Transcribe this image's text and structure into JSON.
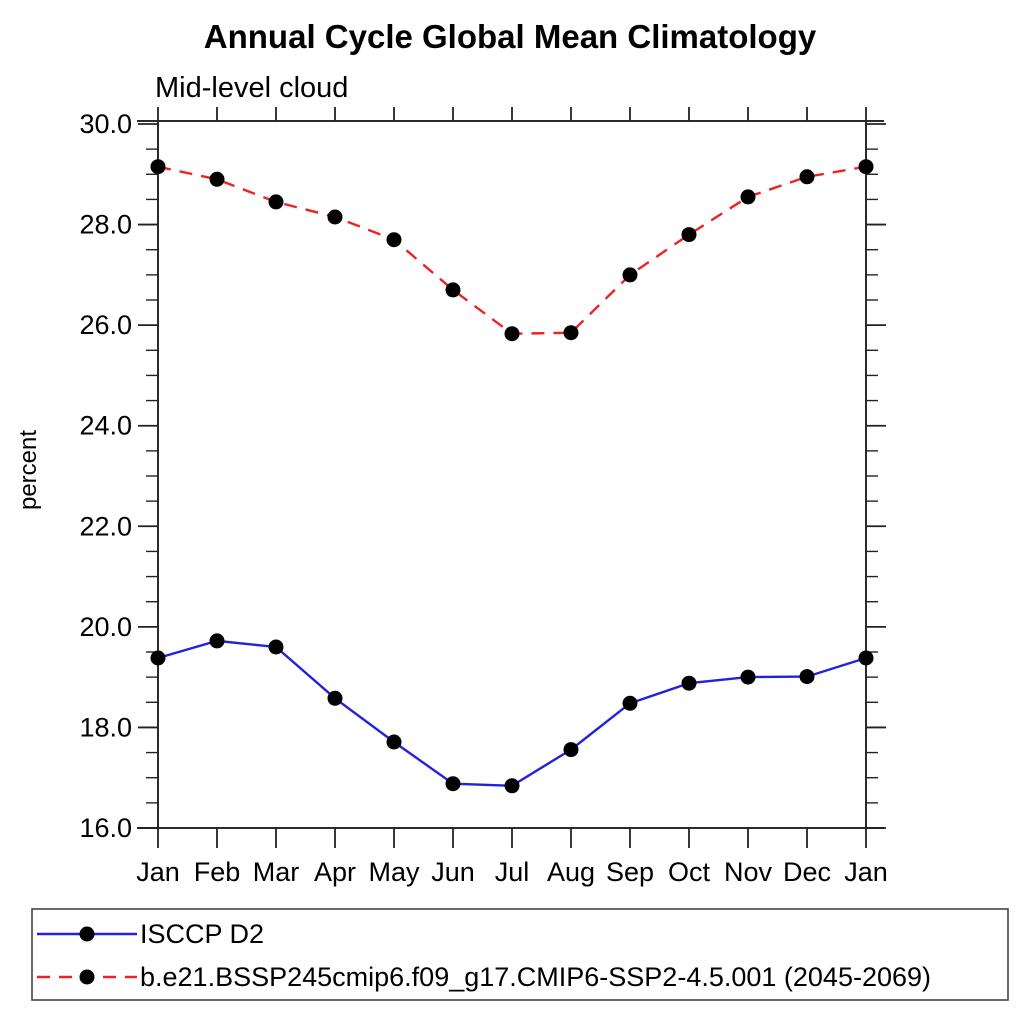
{
  "page": {
    "background": "#ffffff",
    "frame_color": "#2b2b2b",
    "tick_color": "#222222",
    "marker_color": "#000000",
    "legend_border_color": "#444444"
  },
  "chart_data": {
    "type": "line",
    "title": "Annual Cycle Global Mean Climatology",
    "subtitle": "Mid-level cloud",
    "xlabel": "",
    "ylabel": "percent",
    "x_categories": [
      "Jan",
      "Feb",
      "Mar",
      "Apr",
      "May",
      "Jun",
      "Jul",
      "Aug",
      "Sep",
      "Oct",
      "Nov",
      "Dec",
      "Jan"
    ],
    "ylim": [
      16.0,
      30.0
    ],
    "y_major_ticks": [
      16.0,
      18.0,
      20.0,
      22.0,
      24.0,
      26.0,
      28.0,
      30.0
    ],
    "y_major_tick_labels": [
      "16.0",
      "18.0",
      "20.0",
      "22.0",
      "24.0",
      "26.0",
      "28.0",
      "30.0"
    ],
    "y_minor_step": 0.5,
    "grid": false,
    "tick_style": "outward-all-sides",
    "legend_position": "bottom-left-box",
    "series": [
      {
        "name": "ISCCP D2",
        "color": "#2222dd",
        "line_style": "solid",
        "marker": "filled-circle",
        "marker_color": "#000000",
        "values": [
          19.38,
          19.72,
          19.6,
          18.58,
          17.71,
          16.88,
          16.84,
          17.56,
          18.48,
          18.88,
          19.0,
          19.01,
          19.38
        ]
      },
      {
        "name": "b.e21.BSSP245cmip6.f09_g17.CMIP6-SSP2-4.5.001 (2045-2069)",
        "color": "#ee2222",
        "line_style": "dashed",
        "marker": "filled-circle",
        "marker_color": "#000000",
        "values": [
          29.15,
          28.9,
          28.45,
          28.15,
          27.7,
          26.7,
          25.83,
          25.85,
          27.0,
          27.8,
          28.55,
          28.95,
          29.15
        ]
      }
    ]
  }
}
